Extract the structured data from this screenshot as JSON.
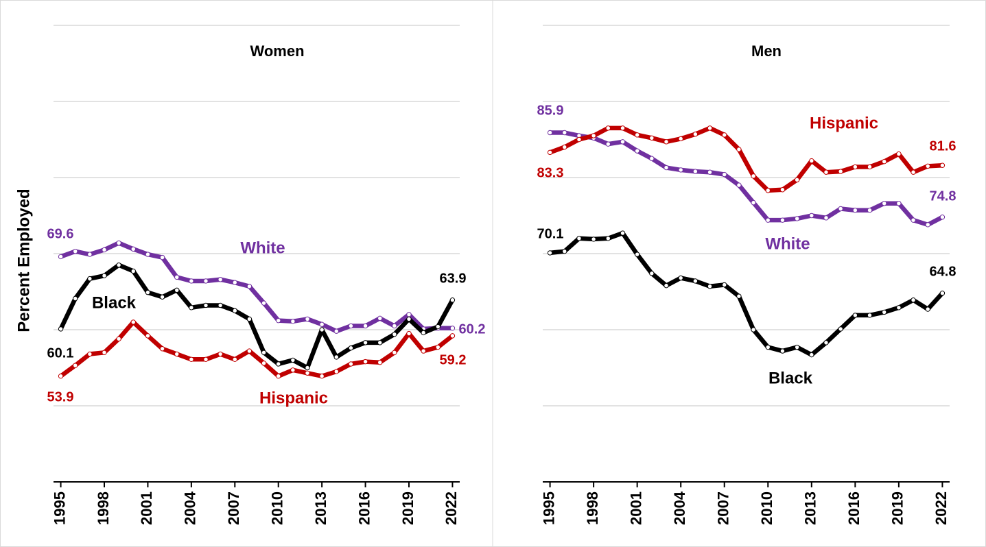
{
  "chart_data": [
    {
      "type": "line",
      "title": "Women",
      "ylabel": "Percent Employed",
      "x": [
        1995,
        1996,
        1997,
        1998,
        1999,
        2000,
        2001,
        2002,
        2003,
        2004,
        2005,
        2006,
        2007,
        2008,
        2009,
        2010,
        2011,
        2012,
        2013,
        2014,
        2015,
        2016,
        2017,
        2018,
        2019,
        2020,
        2021,
        2022
      ],
      "xlim": [
        1994.5,
        2022.5
      ],
      "xticks": [
        1995,
        1998,
        2001,
        2004,
        2007,
        2010,
        2013,
        2016,
        2019,
        2022
      ],
      "ylim": [
        40,
        100
      ],
      "yticks": [
        40,
        50,
        60,
        70,
        80,
        90,
        100
      ],
      "grid": true,
      "series": [
        {
          "name": "White",
          "color": "#7030a0",
          "values": [
            69.6,
            70.3,
            69.9,
            70.5,
            71.4,
            70.6,
            69.9,
            69.5,
            66.9,
            66.4,
            66.4,
            66.6,
            66.2,
            65.7,
            63.5,
            61.2,
            61.1,
            61.4,
            60.7,
            59.8,
            60.5,
            60.5,
            61.5,
            60.5,
            62.0,
            60.1,
            60.2,
            60.2
          ]
        },
        {
          "name": "Black",
          "color": "#000000",
          "values": [
            60.1,
            64.1,
            66.7,
            67.1,
            68.5,
            67.7,
            64.9,
            64.3,
            65.2,
            62.9,
            63.2,
            63.2,
            62.5,
            61.4,
            57.0,
            55.5,
            56.0,
            55.0,
            60.0,
            56.4,
            57.6,
            58.3,
            58.3,
            59.4,
            61.4,
            59.6,
            60.4,
            63.9
          ]
        },
        {
          "name": "Hispanic",
          "color": "#c00000",
          "values": [
            53.9,
            55.3,
            56.8,
            57.0,
            58.8,
            61.0,
            59.2,
            57.5,
            56.8,
            56.1,
            56.1,
            56.8,
            56.1,
            57.2,
            55.6,
            53.9,
            54.7,
            54.3,
            53.9,
            54.5,
            55.5,
            55.8,
            55.7,
            57.0,
            59.5,
            57.2,
            57.7,
            59.2
          ]
        }
      ]
    },
    {
      "type": "line",
      "title": "Men",
      "x": [
        1995,
        1996,
        1997,
        1998,
        1999,
        2000,
        2001,
        2002,
        2003,
        2004,
        2005,
        2006,
        2007,
        2008,
        2009,
        2010,
        2011,
        2012,
        2013,
        2014,
        2015,
        2016,
        2017,
        2018,
        2019,
        2020,
        2021,
        2022
      ],
      "xlim": [
        1994.5,
        2022.5
      ],
      "xticks": [
        1995,
        1998,
        2001,
        2004,
        2007,
        2010,
        2013,
        2016,
        2019,
        2022
      ],
      "ylim": [
        40,
        100
      ],
      "yticks": [
        40,
        50,
        60,
        70,
        80,
        90,
        100
      ],
      "grid": true,
      "series": [
        {
          "name": "White",
          "color": "#7030a0",
          "values": [
            85.9,
            85.9,
            85.5,
            85.2,
            84.4,
            84.7,
            83.5,
            82.5,
            81.3,
            81.0,
            80.8,
            80.7,
            80.4,
            79.0,
            76.7,
            74.4,
            74.4,
            74.6,
            75.0,
            74.7,
            75.9,
            75.7,
            75.7,
            76.6,
            76.6,
            74.4,
            73.8,
            74.8
          ]
        },
        {
          "name": "Black",
          "color": "#000000",
          "values": [
            70.1,
            70.3,
            72.0,
            71.9,
            72.0,
            72.7,
            69.9,
            67.4,
            65.8,
            66.8,
            66.4,
            65.7,
            65.9,
            64.4,
            60.0,
            57.7,
            57.2,
            57.7,
            56.7,
            58.3,
            60.1,
            61.9,
            61.9,
            62.3,
            62.9,
            63.9,
            62.7,
            64.8
          ]
        },
        {
          "name": "Hispanic",
          "color": "#c00000",
          "values": [
            83.3,
            84.0,
            85.0,
            85.5,
            86.5,
            86.5,
            85.6,
            85.2,
            84.7,
            85.1,
            85.7,
            86.5,
            85.6,
            83.7,
            80.2,
            78.3,
            78.4,
            79.7,
            82.2,
            80.7,
            80.8,
            81.4,
            81.4,
            82.1,
            83.1,
            80.7,
            81.5,
            81.6
          ]
        }
      ]
    }
  ]
}
